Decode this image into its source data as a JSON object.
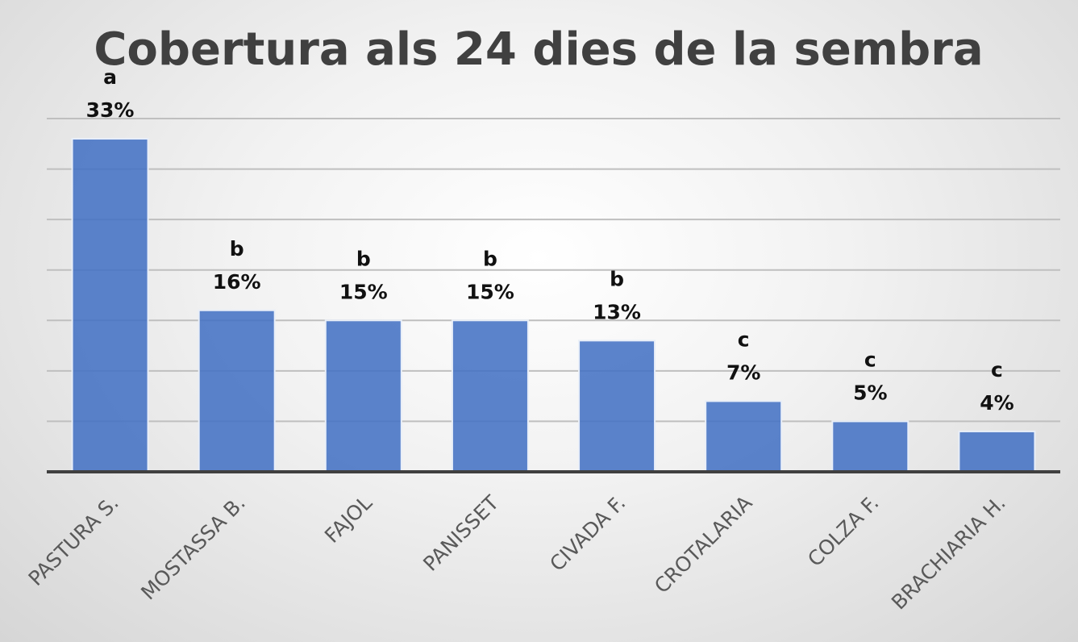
{
  "chart_data": {
    "type": "bar",
    "title": "Cobertura als 24 dies de la sembra",
    "categories": [
      "PASTURA S.",
      "MOSTASSA B.",
      "FAJOL",
      "PANISSET",
      "CIVADA F.",
      "CROTALARIA",
      "COLZA F.",
      "BRACHIARIA H."
    ],
    "values": [
      33,
      16,
      15,
      15,
      13,
      7,
      5,
      4
    ],
    "value_labels": [
      "33%",
      "16%",
      "15%",
      "15%",
      "13%",
      "7%",
      "5%",
      "4%"
    ],
    "group_letters": [
      "a",
      "b",
      "b",
      "b",
      "b",
      "c",
      "c",
      "c"
    ],
    "ylim": [
      0,
      35
    ],
    "y_unit": "%",
    "gridlines": true,
    "y_tick_labels_shown": false,
    "legend": "none",
    "colors": {
      "bar": "#4472c4",
      "title": "#404040",
      "grid": "#bfbfbf",
      "axis": "#404040",
      "tick_label": "#595959"
    }
  }
}
